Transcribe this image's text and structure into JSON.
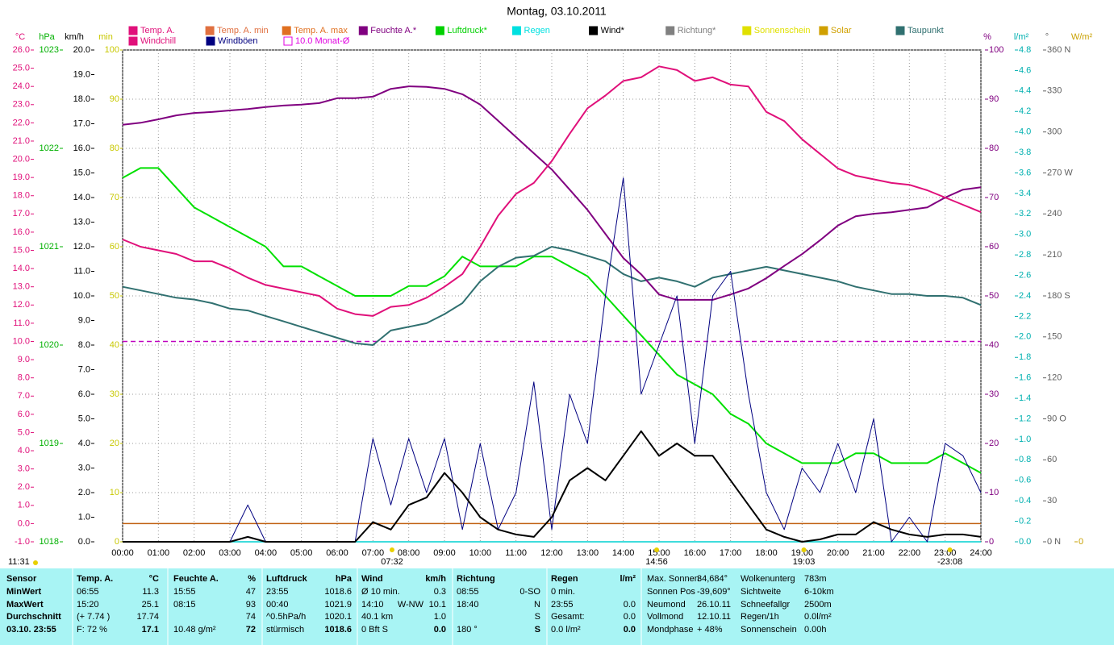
{
  "chart_data": {
    "type": "line",
    "title": "Montag, 03.10.2011",
    "xlim": [
      0,
      24
    ],
    "xticks": [
      {
        "value": 0,
        "label": "00:00"
      },
      {
        "value": 1,
        "label": "01:00"
      },
      {
        "value": 2,
        "label": "02:00"
      },
      {
        "value": 3,
        "label": "03:00"
      },
      {
        "value": 4,
        "label": "04:00"
      },
      {
        "value": 5,
        "label": "05:00"
      },
      {
        "value": 6,
        "label": "06:00"
      },
      {
        "value": 7,
        "label": "07:00"
      },
      {
        "value": 8,
        "label": "08:00"
      },
      {
        "value": 9,
        "label": "09:00"
      },
      {
        "value": 10,
        "label": "10:00"
      },
      {
        "value": 11,
        "label": "11:00"
      },
      {
        "value": 12,
        "label": "12:00"
      },
      {
        "value": 13,
        "label": "13:00"
      },
      {
        "value": 14,
        "label": "14:00"
      },
      {
        "value": 15,
        "label": "15:00"
      },
      {
        "value": 16,
        "label": "16:00"
      },
      {
        "value": 17,
        "label": "17:00"
      },
      {
        "value": 18,
        "label": "18:00"
      },
      {
        "value": 19,
        "label": "19:00"
      },
      {
        "value": 20,
        "label": "20:00"
      },
      {
        "value": 21,
        "label": "21:00"
      },
      {
        "value": 22,
        "label": "22:00"
      },
      {
        "value": 23,
        "label": "23:00"
      },
      {
        "value": 24,
        "label": "24:00"
      }
    ],
    "axes": [
      {
        "title": "°C",
        "color": "#e0107a",
        "lim": [
          -1,
          26
        ],
        "ticks": [
          {
            "value": -1,
            "label": "-1.0"
          },
          {
            "value": 0,
            "label": "0.0"
          },
          {
            "value": 1,
            "label": "1.0"
          },
          {
            "value": 2,
            "label": "2.0"
          },
          {
            "value": 3,
            "label": "3.0"
          },
          {
            "value": 4,
            "label": "4.0"
          },
          {
            "value": 5,
            "label": "5.0"
          },
          {
            "value": 6,
            "label": "6.0"
          },
          {
            "value": 7,
            "label": "7.0"
          },
          {
            "value": 8,
            "label": "8.0"
          },
          {
            "value": 9,
            "label": "9.0"
          },
          {
            "value": 10,
            "label": "10.0"
          },
          {
            "value": 11,
            "label": "11.0"
          },
          {
            "value": 12,
            "label": "12.0"
          },
          {
            "value": 13,
            "label": "13.0"
          },
          {
            "value": 14,
            "label": "14.0"
          },
          {
            "value": 15,
            "label": "15.0"
          },
          {
            "value": 16,
            "label": "16.0"
          },
          {
            "value": 17,
            "label": "17.0"
          },
          {
            "value": 18,
            "label": "18.0"
          },
          {
            "value": 19,
            "label": "19.0"
          },
          {
            "value": 20,
            "label": "20.0"
          },
          {
            "value": 21,
            "label": "21.0"
          },
          {
            "value": 22,
            "label": "22.0"
          },
          {
            "value": 23,
            "label": "23.0"
          },
          {
            "value": 24,
            "label": "24.0"
          },
          {
            "value": 25,
            "label": "25.0"
          },
          {
            "value": 26,
            "label": "26.0"
          }
        ]
      },
      {
        "title": "hPa",
        "color": "#00b000",
        "lim": [
          1018,
          1023
        ],
        "ticks": [
          1018,
          1019,
          1020,
          1021,
          1022,
          1023
        ]
      },
      {
        "title": "km/h",
        "color": "#000000",
        "lim": [
          0,
          20
        ],
        "ticks": [
          {
            "value": 0,
            "label": "0.0"
          },
          {
            "value": 1,
            "label": "1.0"
          },
          {
            "value": 2,
            "label": "2.0"
          },
          {
            "value": 3,
            "label": "3.0"
          },
          {
            "value": 4,
            "label": "4.0"
          },
          {
            "value": 5,
            "label": "5.0"
          },
          {
            "value": 6,
            "label": "6.0"
          },
          {
            "value": 7,
            "label": "7.0"
          },
          {
            "value": 8,
            "label": "8.0"
          },
          {
            "value": 9,
            "label": "9.0"
          },
          {
            "value": 10,
            "label": "10.0"
          },
          {
            "value": 11,
            "label": "11.0"
          },
          {
            "value": 12,
            "label": "12.0"
          },
          {
            "value": 13,
            "label": "13.0"
          },
          {
            "value": 14,
            "label": "14.0"
          },
          {
            "value": 15,
            "label": "15.0"
          },
          {
            "value": 16,
            "label": "16.0"
          },
          {
            "value": 17,
            "label": "17.0"
          },
          {
            "value": 18,
            "label": "18.0"
          },
          {
            "value": 19,
            "label": "19.0"
          },
          {
            "value": 20,
            "label": "20.0"
          }
        ]
      },
      {
        "title": "min",
        "color": "#c8c800",
        "lim": [
          0,
          100
        ],
        "ticks": [
          0,
          10,
          20,
          30,
          40,
          50,
          60,
          70,
          80,
          90,
          100
        ]
      },
      {
        "title": "%",
        "color": "#800080",
        "lim": [
          0,
          100
        ],
        "ticks": [
          0,
          10,
          20,
          30,
          40,
          50,
          60,
          70,
          80,
          90,
          100
        ],
        "grid": true
      },
      {
        "title": "l/m²",
        "color": "#00b0b0",
        "lim": [
          0,
          4.8
        ],
        "ticks": [
          {
            "value": 0,
            "label": "0.0"
          },
          0.2,
          0.4,
          0.6,
          0.8,
          {
            "value": 1,
            "label": "1.0"
          },
          1.2,
          1.4,
          1.6,
          1.8,
          {
            "value": 2,
            "label": "2.0"
          },
          2.2,
          2.4,
          2.6,
          2.8,
          {
            "value": 3,
            "label": "3.0"
          },
          3.2,
          3.4,
          3.6,
          3.8,
          {
            "value": 4,
            "label": "4.0"
          },
          4.2,
          4.4,
          4.6,
          4.8
        ]
      },
      {
        "title": "°",
        "color": "#606060",
        "lim": [
          0,
          360
        ],
        "ticks": [
          {
            "value": 0,
            "label": "0 N"
          },
          30,
          60,
          {
            "value": 90,
            "label": "90 O"
          },
          120,
          150,
          {
            "value": 180,
            "label": "180 S"
          },
          210,
          240,
          {
            "value": 270,
            "label": "270 W"
          },
          300,
          330,
          {
            "value": 360,
            "label": "360 N"
          }
        ]
      },
      {
        "title": "W/m²",
        "color": "#c8a000",
        "lim": [
          0,
          1000
        ],
        "ticks": [
          0
        ]
      }
    ],
    "x": [
      0,
      0.5,
      1,
      1.5,
      2,
      2.5,
      3,
      3.5,
      4,
      4.5,
      5,
      5.5,
      6,
      6.5,
      7,
      7.5,
      8,
      8.5,
      9,
      9.5,
      10,
      10.5,
      11,
      11.5,
      12,
      12.5,
      13,
      13.5,
      14,
      14.5,
      15,
      15.5,
      16,
      16.5,
      17,
      17.5,
      18,
      18.5,
      19,
      19.5,
      20,
      20.5,
      21,
      21.5,
      22,
      22.5,
      23,
      23.5,
      24
    ],
    "series": [
      {
        "name": "Luftdruck*",
        "color": "#00e000",
        "axis": "hPa",
        "values": [
          1021.7,
          1021.8,
          1021.8,
          1021.6,
          1021.4,
          1021.3,
          1021.2,
          1021.1,
          1021.0,
          1020.8,
          1020.8,
          1020.7,
          1020.6,
          1020.5,
          1020.5,
          1020.5,
          1020.6,
          1020.6,
          1020.7,
          1020.9,
          1020.8,
          1020.8,
          1020.8,
          1020.9,
          1020.9,
          1020.8,
          1020.7,
          1020.5,
          1020.3,
          1020.1,
          1019.9,
          1019.7,
          1019.6,
          1019.5,
          1019.3,
          1019.2,
          1019.0,
          1018.9,
          1018.8,
          1018.8,
          1018.8,
          1018.9,
          1018.9,
          1018.8,
          1018.8,
          1018.8,
          1018.9,
          1018.8,
          1018.7
        ]
      },
      {
        "name": "Taupunkt",
        "color": "#307070",
        "axis": "°C",
        "values": [
          13.0,
          12.8,
          12.6,
          12.4,
          12.3,
          12.1,
          11.8,
          11.7,
          11.4,
          11.1,
          10.8,
          10.5,
          10.2,
          9.9,
          9.8,
          10.6,
          10.8,
          11.0,
          11.5,
          12.1,
          13.3,
          14.1,
          14.6,
          14.7,
          15.2,
          15.0,
          14.7,
          14.4,
          13.7,
          13.3,
          13.5,
          13.3,
          13.0,
          13.5,
          13.7,
          13.9,
          14.1,
          13.9,
          13.7,
          13.5,
          13.3,
          13.0,
          12.8,
          12.6,
          12.6,
          12.5,
          12.5,
          12.4,
          12.0
        ]
      },
      {
        "name": "Feuchte A.*",
        "color": "#800080",
        "axis": "%",
        "values": [
          84.8,
          85.2,
          85.9,
          86.7,
          87.2,
          87.4,
          87.7,
          88.0,
          88.4,
          88.7,
          88.9,
          89.2,
          90.2,
          90.2,
          90.5,
          92.1,
          92.6,
          92.5,
          92.1,
          91.0,
          88.9,
          85.6,
          82.3,
          79.0,
          75.7,
          71.6,
          67.5,
          62.6,
          57.7,
          54.4,
          50.3,
          49.2,
          49.2,
          49.2,
          50.3,
          51.5,
          53.6,
          56.1,
          58.5,
          61.3,
          64.3,
          66.2,
          66.7,
          67.0,
          67.5,
          68.0,
          70.0,
          71.6,
          72.1
        ]
      },
      {
        "name": "Temp. A.",
        "color": "#e0107a",
        "axis": "°C",
        "values": [
          15.6,
          15.2,
          15.0,
          14.8,
          14.4,
          14.4,
          14.0,
          13.5,
          13.1,
          12.9,
          12.7,
          12.5,
          11.8,
          11.5,
          11.4,
          11.9,
          12.0,
          12.4,
          13.0,
          13.7,
          15.2,
          16.9,
          18.1,
          18.7,
          19.9,
          21.4,
          22.8,
          23.5,
          24.3,
          24.5,
          25.1,
          24.9,
          24.3,
          24.5,
          24.1,
          24.0,
          22.6,
          22.1,
          21.1,
          20.3,
          19.5,
          19.1,
          18.9,
          18.7,
          18.6,
          18.3,
          17.9,
          17.5,
          17.1
        ]
      },
      {
        "name": "Windböen",
        "color": "#000080",
        "axis": "km/h",
        "width": 1,
        "values": [
          0,
          0,
          0,
          0,
          0,
          0,
          0,
          1.5,
          0,
          0,
          0,
          0,
          0,
          0,
          4.2,
          1.5,
          4.2,
          2.0,
          4.2,
          0.5,
          4.0,
          0.5,
          2.0,
          6.5,
          0.5,
          6.0,
          4.0,
          10.0,
          14.8,
          6.0,
          8.0,
          10.0,
          4.0,
          10.0,
          11.0,
          6.0,
          2.0,
          0.5,
          3.0,
          2.0,
          4.0,
          2.0,
          5.0,
          0,
          1.0,
          0,
          4.0,
          3.5,
          2.0
        ]
      },
      {
        "name": "Wind*",
        "color": "#000000",
        "axis": "km/h",
        "values": [
          0,
          0,
          0,
          0,
          0,
          0,
          0,
          0.2,
          0,
          0,
          0,
          0,
          0,
          0,
          0.8,
          0.5,
          1.5,
          1.8,
          2.8,
          2.0,
          1.0,
          0.5,
          0.3,
          0.2,
          1.0,
          2.5,
          3.0,
          2.5,
          3.5,
          4.5,
          3.5,
          4.0,
          3.5,
          3.5,
          2.5,
          1.5,
          0.5,
          0.2,
          0,
          0.1,
          0.3,
          0.3,
          0.8,
          0.5,
          0.3,
          0.2,
          0.3,
          0.3,
          0.2
        ]
      }
    ],
    "reference_lines": [
      {
        "value": 10,
        "axis": "°C",
        "color": "#c000c0",
        "dashed": true
      },
      {
        "value": 0,
        "axis": "°C",
        "color": "#c06010"
      },
      {
        "value": 0,
        "axis": "l/m²",
        "color": "#00d0d0"
      }
    ],
    "legend": [
      {
        "name": "Temp. A.",
        "color": "#e0107a"
      },
      {
        "name": "Temp. A. min",
        "color": "#e07040"
      },
      {
        "name": "Temp. A. max",
        "color": "#e07020"
      },
      {
        "name": "Feuchte A.*",
        "color": "#800080"
      },
      {
        "name": "Luftdruck*",
        "color": "#00d000"
      },
      {
        "name": "Regen",
        "color": "#00e0e0"
      },
      {
        "name": "Wind*",
        "color": "#000000"
      },
      {
        "name": "Richtung*",
        "color": "#808080"
      },
      {
        "name": "Sonnenschein",
        "color": "#e0e000"
      },
      {
        "name": "Solar",
        "color": "#d0a000"
      },
      {
        "name": "Taupunkt",
        "color": "#307070"
      },
      {
        "name": "Windchill",
        "color": "#e0107a"
      },
      {
        "name": "Windböen",
        "color": "#000080"
      },
      {
        "name": "10.0 Monat-Ø",
        "color": "#e000e0",
        "hollow": true
      }
    ],
    "sun_times": [
      {
        "x": 7.5333,
        "label": "07:32"
      },
      {
        "x": 14.9333,
        "label": "14:56"
      },
      {
        "x": 19.05,
        "label": "19:03"
      },
      {
        "x": 23.1333,
        "label": "-23:08"
      }
    ],
    "day_length": "11:31"
  },
  "panel": {
    "sensor": [
      "Sensor",
      "MinWert",
      "MaxWert",
      "Durchschnitt",
      "03.10. 23:55"
    ],
    "groups": [
      {
        "title": "Temp. A.",
        "unit": "°C",
        "rows": [
          {
            "l": "06:55",
            "r": "11.3"
          },
          {
            "l": "15:20",
            "r": "25.1"
          },
          {
            "l": "(+ 7.74 )",
            "r": "17.74"
          },
          {
            "l": "F: 72 %",
            "r": "17.1"
          }
        ]
      },
      {
        "title": "Feuchte A.",
        "unit": "%",
        "rows": [
          {
            "l": "15:55",
            "r": "47"
          },
          {
            "l": "08:15",
            "r": "93"
          },
          {
            "r": "74"
          },
          {
            "l": "10.48 g/m²",
            "r": "72"
          }
        ]
      },
      {
        "title": "Luftdruck",
        "unit": "hPa",
        "rows": [
          {
            "l": "23:55",
            "r": "1018.6"
          },
          {
            "l": "00:40",
            "r": "1021.9"
          },
          {
            "l": "^0.5hPa/h",
            "r": "1020.1"
          },
          {
            "l": "stürmisch",
            "r": "1018.6"
          }
        ]
      },
      {
        "title": "Wind",
        "unit": "km/h",
        "rows": [
          {
            "l": "Ø 10 min.",
            "r": "0.3"
          },
          {
            "l": "14:10",
            "m": "W-NW",
            "r": "10.1"
          },
          {
            "l": "40.1 km",
            "r": "1.0"
          },
          {
            "l": "0 Bft S",
            "r": "0.0"
          }
        ]
      },
      {
        "title": "Richtung",
        "rows": [
          {
            "l": "08:55",
            "r": "0-SO"
          },
          {
            "l": "18:40",
            "r": "N"
          },
          {
            "r": "S"
          },
          {
            "l": "180 °",
            "r": "S"
          }
        ]
      },
      {
        "title": "Regen",
        "unit": "l/m²",
        "rows": [
          {
            "l": "0 min."
          },
          {
            "l": "23:55",
            "r": "0.0"
          },
          {
            "l": "Gesamt:",
            "r": "0.0"
          },
          {
            "l": "0.0 l/m²",
            "r": "0.0"
          }
        ]
      }
    ],
    "info": [
      [
        [
          "Max. Sonnen",
          "34,684°"
        ],
        [
          "Sonnen Pos",
          "-39,609°"
        ],
        [
          "Neumond",
          "26.10.11"
        ],
        [
          "Vollmond",
          "12.10.11"
        ],
        [
          "Mondphase",
          "+ 48%"
        ]
      ],
      [
        [
          "Wolkenunterg",
          "783m"
        ],
        [
          "Sichtweite",
          "6-10km"
        ],
        [
          "Schneefallgr",
          "2500m"
        ],
        [
          "Regen/1h",
          "0.0l/m²"
        ],
        [
          "Sonnenschein",
          "0.00h"
        ]
      ]
    ]
  }
}
